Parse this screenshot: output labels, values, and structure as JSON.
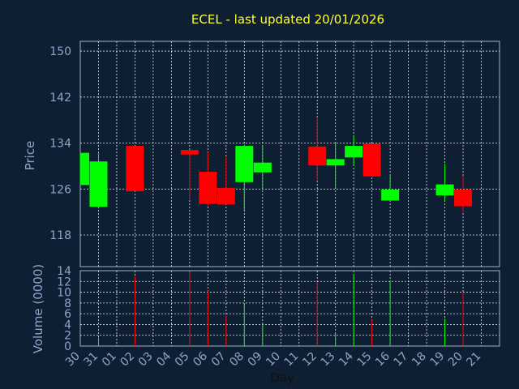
{
  "chart_data": {
    "type": "candlestick",
    "title": "ECEL - last updated 20/01/2026",
    "xlabel": "Day",
    "colors": {
      "up": "#00ff00",
      "down": "#ff0000",
      "background": "#0f1f33",
      "frame": "#9fb3c8"
    },
    "days": [
      "30",
      "31",
      "01",
      "02",
      "03",
      "04",
      "05",
      "06",
      "07",
      "08",
      "09",
      "10",
      "11",
      "12",
      "13",
      "14",
      "15",
      "16",
      "17",
      "18",
      "19",
      "20",
      "21"
    ],
    "price_panel": {
      "ylabel": "Price",
      "yticks": [
        118,
        126,
        134,
        142,
        150
      ],
      "ylim": [
        112.5,
        151.7
      ]
    },
    "volume_panel": {
      "ylabel": "Volume (0000)",
      "yticks": [
        0,
        2,
        4,
        6,
        8,
        10,
        12,
        14
      ],
      "ylim": [
        0,
        14
      ]
    },
    "candles": [
      {
        "day": "30",
        "open": 126.7,
        "close": 132.3,
        "high": 132.3,
        "low": 126.7,
        "volume": 0.2
      },
      {
        "day": "31",
        "open": 122.9,
        "close": 130.8,
        "high": 132.4,
        "low": 122.9,
        "volume": 1.6
      },
      {
        "day": "02",
        "open": 133.5,
        "close": 125.6,
        "high": 133.5,
        "low": 125.6,
        "volume": 13.0
      },
      {
        "day": "05",
        "open": 132.8,
        "close": 132.0,
        "high": 132.8,
        "low": 124.2,
        "volume": 13.9
      },
      {
        "day": "06",
        "open": 129.0,
        "close": 123.4,
        "high": 132.4,
        "low": 123.0,
        "volume": 10.3
      },
      {
        "day": "07",
        "open": 126.2,
        "close": 123.3,
        "high": 131.7,
        "low": 123.3,
        "volume": 5.6
      },
      {
        "day": "08",
        "open": 127.2,
        "close": 133.5,
        "high": 133.5,
        "low": 122.3,
        "volume": 7.8
      },
      {
        "day": "09",
        "open": 128.9,
        "close": 130.6,
        "high": 133.4,
        "low": 126.1,
        "volume": 4.3
      },
      {
        "day": "12",
        "open": 133.4,
        "close": 130.1,
        "high": 138.5,
        "low": 127.4,
        "volume": 11.9
      },
      {
        "day": "13",
        "open": 130.1,
        "close": 131.2,
        "high": 134.2,
        "low": 126.1,
        "volume": 2.3
      },
      {
        "day": "14",
        "open": 131.5,
        "close": 133.5,
        "high": 135.4,
        "low": 130.0,
        "volume": 13.4
      },
      {
        "day": "15",
        "open": 133.9,
        "close": 128.2,
        "high": 133.9,
        "low": 128.2,
        "volume": 4.9
      },
      {
        "day": "16",
        "open": 124.0,
        "close": 125.9,
        "high": 128.3,
        "low": 124.0,
        "volume": 12.1
      },
      {
        "day": "19",
        "open": 124.9,
        "close": 126.8,
        "high": 130.4,
        "low": 123.9,
        "volume": 5.1
      },
      {
        "day": "20",
        "open": 125.9,
        "close": 123.0,
        "high": 128.3,
        "low": 122.0,
        "volume": 10.0
      }
    ]
  }
}
